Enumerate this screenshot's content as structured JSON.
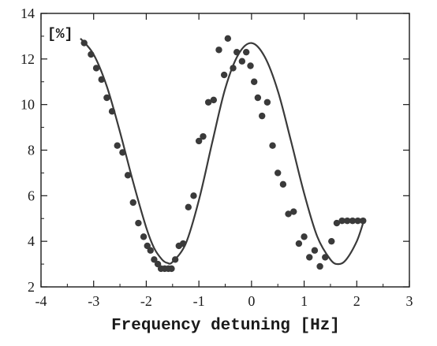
{
  "chart_data": {
    "type": "scatter",
    "title": "",
    "xlabel": "Frequency detuning [Hz]",
    "ylabel": "[%]",
    "xlim": [
      -4,
      3
    ],
    "ylim": [
      2,
      14
    ],
    "x_ticks": [
      -4,
      -3,
      -2,
      -1,
      0,
      1,
      2,
      3
    ],
    "y_ticks": [
      2,
      4,
      6,
      8,
      10,
      12,
      14
    ],
    "x_tick_labels": [
      "-4",
      "-3",
      "-2",
      "-1",
      "0",
      "1",
      "2",
      "3"
    ],
    "y_tick_labels": [
      "2",
      "4",
      "6",
      "8",
      "10",
      "12",
      "14"
    ],
    "grid": false,
    "colors": {
      "marks": "#3a3a3a",
      "axes": "#1a1a1a"
    },
    "series": [
      {
        "kind": "points",
        "x": [
          -3.18,
          -3.05,
          -2.95,
          -2.85,
          -2.75,
          -2.65,
          -2.55,
          -2.45,
          -2.35,
          -2.25,
          -2.15,
          -2.05,
          -1.98,
          -1.92,
          -1.85,
          -1.78,
          -1.72,
          -1.65,
          -1.58,
          -1.52,
          -1.45,
          -1.38,
          -1.3,
          -1.2,
          -1.1,
          -1.0,
          -0.92,
          -0.82,
          -0.72,
          -0.62,
          -0.52,
          -0.45,
          -0.35,
          -0.28,
          -0.18,
          -0.1,
          -0.02,
          0.05,
          0.12,
          0.2,
          0.3,
          0.4,
          0.5,
          0.6,
          0.7,
          0.8,
          0.9,
          1.0,
          1.1,
          1.2,
          1.3,
          1.4,
          1.52,
          1.62,
          1.72,
          1.82,
          1.92,
          2.02,
          2.12
        ],
        "y": [
          12.7,
          12.2,
          11.6,
          11.1,
          10.3,
          9.7,
          8.2,
          7.9,
          6.9,
          5.7,
          4.8,
          4.2,
          3.8,
          3.6,
          3.2,
          3.0,
          2.8,
          2.8,
          2.8,
          2.8,
          3.2,
          3.8,
          3.9,
          5.5,
          6.0,
          8.4,
          8.6,
          10.1,
          10.2,
          12.4,
          11.3,
          12.9,
          11.6,
          12.3,
          11.9,
          12.3,
          11.7,
          11.0,
          10.3,
          9.5,
          10.1,
          8.2,
          7.0,
          6.5,
          5.2,
          5.3,
          3.9,
          4.2,
          3.3,
          3.6,
          2.9,
          3.3,
          4.0,
          4.8,
          4.9,
          4.9,
          4.9,
          4.9,
          4.9
        ]
      },
      {
        "kind": "fit-line",
        "x": [
          -3.25,
          -3.0,
          -2.75,
          -2.5,
          -2.25,
          -2.0,
          -1.85,
          -1.7,
          -1.6,
          -1.5,
          -1.25,
          -1.0,
          -0.75,
          -0.5,
          -0.25,
          0.0,
          0.25,
          0.5,
          0.75,
          1.0,
          1.25,
          1.5,
          1.65,
          1.8,
          2.0,
          2.12
        ],
        "y": [
          12.9,
          12.2,
          10.8,
          8.8,
          6.6,
          4.6,
          3.7,
          3.2,
          3.05,
          3.1,
          3.9,
          5.8,
          8.3,
          10.7,
          12.2,
          12.7,
          12.1,
          10.6,
          8.4,
          6.1,
          4.2,
          3.2,
          3.0,
          3.2,
          4.0,
          4.8
        ]
      }
    ]
  }
}
